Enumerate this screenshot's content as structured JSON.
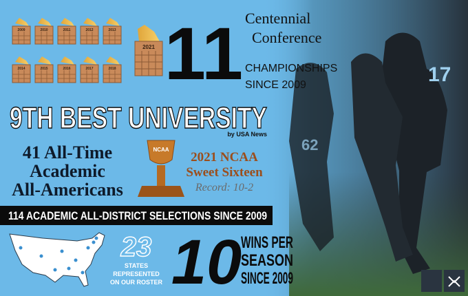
{
  "championships": {
    "count": "11",
    "years": [
      "2009",
      "2010",
      "2011",
      "2012",
      "2013",
      "2014",
      "2015",
      "2016",
      "2017",
      "2018"
    ],
    "feature_year": "2021",
    "conference": [
      "Centennial",
      "Conference"
    ],
    "caption": [
      "CHAMPIONSHIPS",
      "SINCE 2009"
    ]
  },
  "ranking": {
    "title": "9TH BEST UNIVERSITY",
    "source": "by USA News"
  },
  "academic": [
    "41 All-Time",
    "Academic",
    "All-Americans"
  ],
  "ncaa": {
    "trophy_label": "NCAA",
    "lines": [
      "2021 NCAA",
      "Sweet Sixteen"
    ],
    "record": "Record: 10-2"
  },
  "banner": "114 ACADEMIC ALL-DISTRICT SELECTIONS SINCE 2009",
  "states": {
    "count": "23",
    "caption": [
      "STATES",
      "REPRESENTED",
      "ON OUR ROSTER"
    ]
  },
  "wins": {
    "count": "10",
    "caption": [
      "WINS PER",
      "SEASON",
      "SINCE 2009"
    ]
  }
}
